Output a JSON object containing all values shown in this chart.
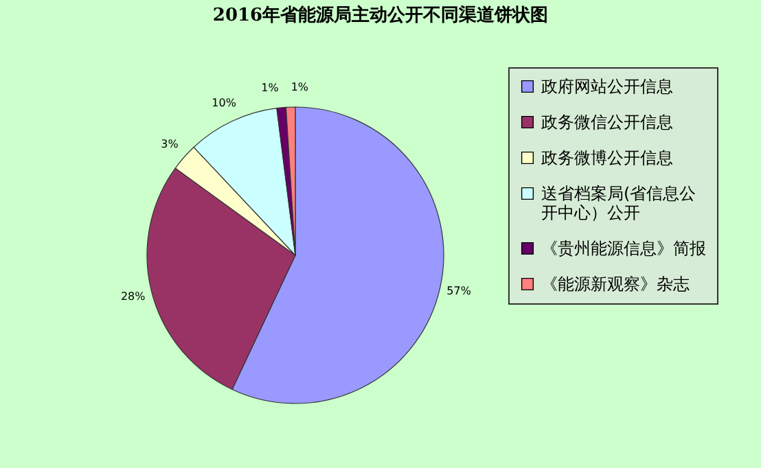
{
  "chart_data": {
    "type": "pie",
    "title": "2016年省能源局主动公开不同渠道饼状图",
    "categories": [
      "政府网站公开信息",
      "政务微信公开信息",
      "政务微博公开信息",
      "送省档案局(省信息公开中心）公开",
      "《贵州能源信息》简报",
      "《能源新观察》杂志"
    ],
    "values": [
      57,
      28,
      3,
      10,
      1,
      1
    ],
    "colors": [
      "#9999ff",
      "#993366",
      "#ffffcc",
      "#ccffff",
      "#660066",
      "#ff8080"
    ],
    "value_labels": [
      "57%",
      "28%",
      "3%",
      "10%",
      "1%",
      "1%"
    ],
    "legend": "right"
  }
}
